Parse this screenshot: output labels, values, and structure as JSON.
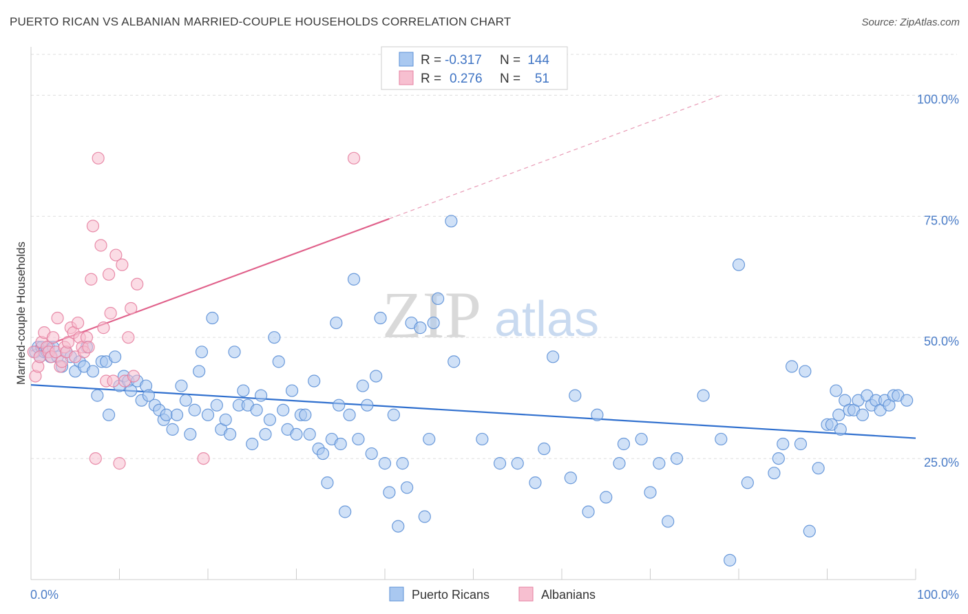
{
  "title": "PUERTO RICAN VS ALBANIAN MARRIED-COUPLE HOUSEHOLDS CORRELATION CHART",
  "source": "Source: ZipAtlas.com",
  "watermark": {
    "zip": "ZIP",
    "atlas": "atlas"
  },
  "legend": {
    "r_label": "R =",
    "n_label": "N =",
    "rows": [
      {
        "r": "-0.317",
        "n": "144",
        "color": "#a9c8f0",
        "stroke": "#5b8fd6"
      },
      {
        "r": "0.276",
        "n": "51",
        "color": "#f7bfd0",
        "stroke": "#e67fa0"
      }
    ]
  },
  "bottom_legend": [
    "Puerto Ricans",
    "Albanians"
  ],
  "chart_data": {
    "type": "scatter",
    "xlabel": "",
    "ylabel": "Married-couple Households",
    "xlim": [
      0,
      100
    ],
    "ylim": [
      0,
      110
    ],
    "x_tick_labels": [
      "0.0%",
      "100.0%"
    ],
    "y_ticks": [
      25,
      50,
      75,
      100
    ],
    "y_tick_labels": [
      "25.0%",
      "50.0%",
      "75.0%",
      "100.0%"
    ],
    "grid": true,
    "series": [
      {
        "name": "Puerto Ricans",
        "color": "#5b8fd6",
        "fill": "#a9c8f0",
        "trend": {
          "x0": 0,
          "y0": 40.2,
          "x1": 100,
          "y1": 29.2,
          "dashed_from": null
        },
        "points": [
          [
            0.5,
            47
          ],
          [
            0.8,
            48
          ],
          [
            1,
            46
          ],
          [
            1.2,
            48
          ],
          [
            1.5,
            47
          ],
          [
            1.8,
            47
          ],
          [
            2,
            48
          ],
          [
            2.2,
            46
          ],
          [
            2.5,
            48
          ],
          [
            3,
            46
          ],
          [
            3.5,
            44
          ],
          [
            4,
            47
          ],
          [
            4.5,
            46
          ],
          [
            5,
            43
          ],
          [
            5.5,
            45
          ],
          [
            6,
            44
          ],
          [
            6.3,
            48
          ],
          [
            7,
            43
          ],
          [
            7.5,
            38
          ],
          [
            8,
            45
          ],
          [
            8.5,
            45
          ],
          [
            8.8,
            34
          ],
          [
            9.5,
            46
          ],
          [
            10,
            40
          ],
          [
            10.5,
            42
          ],
          [
            11,
            41
          ],
          [
            11.3,
            39
          ],
          [
            12,
            41
          ],
          [
            12.5,
            37
          ],
          [
            13,
            40
          ],
          [
            13.3,
            38
          ],
          [
            14,
            36
          ],
          [
            14.5,
            35
          ],
          [
            15,
            33
          ],
          [
            15.3,
            34
          ],
          [
            16,
            31
          ],
          [
            16.5,
            34
          ],
          [
            17,
            40
          ],
          [
            17.5,
            37
          ],
          [
            18,
            30
          ],
          [
            18.5,
            35
          ],
          [
            19,
            43
          ],
          [
            19.3,
            47
          ],
          [
            20,
            34
          ],
          [
            20.5,
            54
          ],
          [
            21,
            36
          ],
          [
            21.5,
            31
          ],
          [
            22,
            33
          ],
          [
            22.5,
            30
          ],
          [
            23,
            47
          ],
          [
            23.5,
            36
          ],
          [
            24,
            39
          ],
          [
            24.5,
            36
          ],
          [
            25,
            28
          ],
          [
            25.5,
            35
          ],
          [
            26,
            38
          ],
          [
            26.5,
            30
          ],
          [
            27,
            33
          ],
          [
            27.5,
            50
          ],
          [
            28,
            45
          ],
          [
            28.5,
            35
          ],
          [
            29,
            31
          ],
          [
            29.5,
            39
          ],
          [
            30,
            30
          ],
          [
            30.5,
            34
          ],
          [
            31,
            34
          ],
          [
            31.5,
            30
          ],
          [
            32,
            41
          ],
          [
            32.5,
            27
          ],
          [
            33,
            26
          ],
          [
            33.5,
            20
          ],
          [
            34,
            29
          ],
          [
            34.5,
            53
          ],
          [
            34.8,
            36
          ],
          [
            35,
            28
          ],
          [
            35.5,
            14
          ],
          [
            36,
            34
          ],
          [
            36.5,
            62
          ],
          [
            37,
            29
          ],
          [
            37.5,
            40
          ],
          [
            38,
            36
          ],
          [
            38.5,
            26
          ],
          [
            39,
            42
          ],
          [
            39.5,
            54
          ],
          [
            40,
            24
          ],
          [
            40.5,
            18
          ],
          [
            41,
            34
          ],
          [
            41.5,
            11
          ],
          [
            42,
            24
          ],
          [
            42.5,
            19
          ],
          [
            43,
            53
          ],
          [
            44,
            52
          ],
          [
            44.5,
            13
          ],
          [
            45,
            29
          ],
          [
            45.5,
            53
          ],
          [
            46,
            58
          ],
          [
            47.5,
            74
          ],
          [
            47.8,
            45
          ],
          [
            51,
            29
          ],
          [
            53,
            24
          ],
          [
            55,
            24
          ],
          [
            57,
            20
          ],
          [
            58,
            27
          ],
          [
            59,
            46
          ],
          [
            61,
            21
          ],
          [
            61.5,
            38
          ],
          [
            63,
            14
          ],
          [
            64,
            34
          ],
          [
            65,
            17
          ],
          [
            66.5,
            24
          ],
          [
            67,
            28
          ],
          [
            69,
            29
          ],
          [
            70,
            18
          ],
          [
            71,
            24
          ],
          [
            72,
            12
          ],
          [
            73,
            25
          ],
          [
            76,
            38
          ],
          [
            78,
            29
          ],
          [
            79,
            4
          ],
          [
            80,
            65
          ],
          [
            81,
            20
          ],
          [
            84,
            22
          ],
          [
            84.5,
            25
          ],
          [
            85,
            28
          ],
          [
            86,
            44
          ],
          [
            87,
            28
          ],
          [
            87.5,
            43
          ],
          [
            88,
            10
          ],
          [
            89,
            23
          ],
          [
            90,
            32
          ],
          [
            90.5,
            32
          ],
          [
            91,
            39
          ],
          [
            91.3,
            34
          ],
          [
            91.5,
            31
          ],
          [
            92,
            37
          ],
          [
            92.5,
            35
          ],
          [
            93,
            35
          ],
          [
            93.5,
            37
          ],
          [
            94,
            34
          ],
          [
            94.5,
            38
          ],
          [
            95,
            36
          ],
          [
            95.5,
            37
          ],
          [
            96,
            35
          ],
          [
            96.5,
            37
          ],
          [
            97,
            36
          ],
          [
            97.5,
            38
          ],
          [
            98,
            38
          ],
          [
            99,
            37
          ]
        ]
      },
      {
        "name": "Albanians",
        "color": "#e67fa0",
        "fill": "#f7bfd0",
        "trend": {
          "x0": 0,
          "y0": 47.2,
          "x1": 40.5,
          "y1": 74.5,
          "dashed_to_x": 78,
          "dashed_to_y": 100
        },
        "points": [
          [
            0.3,
            47
          ],
          [
            0.5,
            42
          ],
          [
            0.8,
            44
          ],
          [
            1,
            46
          ],
          [
            1.2,
            49
          ],
          [
            1.5,
            51
          ],
          [
            1.8,
            48
          ],
          [
            2,
            47
          ],
          [
            2.3,
            46
          ],
          [
            2.5,
            50
          ],
          [
            2.8,
            47
          ],
          [
            3,
            54
          ],
          [
            3.3,
            44
          ],
          [
            3.5,
            45
          ],
          [
            3.8,
            48
          ],
          [
            4,
            47
          ],
          [
            4.2,
            49
          ],
          [
            4.5,
            52
          ],
          [
            4.8,
            51
          ],
          [
            5,
            46
          ],
          [
            5.3,
            53
          ],
          [
            5.5,
            50
          ],
          [
            5.8,
            48
          ],
          [
            6,
            47
          ],
          [
            6.3,
            50
          ],
          [
            6.5,
            48
          ],
          [
            6.8,
            62
          ],
          [
            7,
            73
          ],
          [
            7.3,
            25
          ],
          [
            7.6,
            87
          ],
          [
            7.9,
            69
          ],
          [
            8.2,
            52
          ],
          [
            8.5,
            41
          ],
          [
            8.8,
            63
          ],
          [
            9,
            55
          ],
          [
            9.3,
            41
          ],
          [
            9.6,
            67
          ],
          [
            10,
            24
          ],
          [
            10.3,
            65
          ],
          [
            10.6,
            41
          ],
          [
            11,
            50
          ],
          [
            11.3,
            56
          ],
          [
            11.6,
            42
          ],
          [
            12,
            61
          ],
          [
            19.5,
            25
          ],
          [
            36.5,
            87
          ]
        ]
      }
    ]
  }
}
